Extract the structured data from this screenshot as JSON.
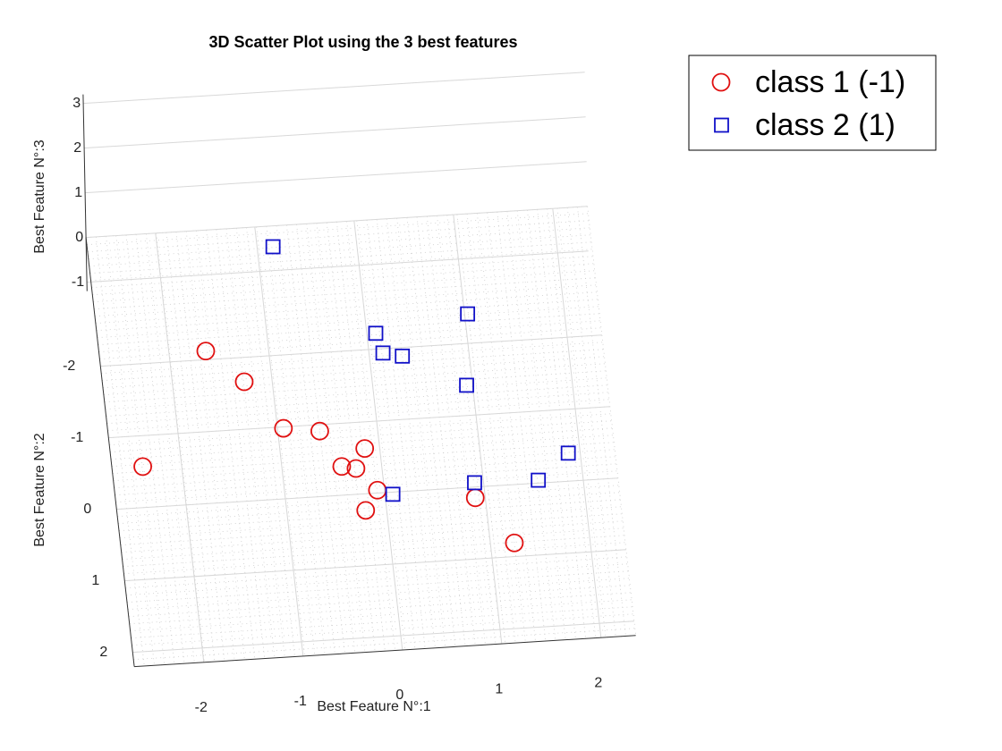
{
  "chart_data": {
    "type": "scatter",
    "title": "3D Scatter Plot using the 3 best features",
    "xlabel": "Best Feature N°:1",
    "ylabel": "Best Feature N°:2",
    "zlabel": "Best Feature N°:3",
    "xlim": [
      -2.7,
      2.35
    ],
    "xticks": [
      -2,
      -1,
      0,
      1,
      2
    ],
    "ylim": [
      -3.8,
      2.2
    ],
    "yticks": [
      -2,
      -1,
      0,
      1,
      2
    ],
    "zlim": [
      -1.2,
      3.2
    ],
    "zticks": [
      -1,
      0,
      1,
      2,
      3
    ],
    "grid": true,
    "legend": "outside-top-right",
    "series": [
      {
        "name": "class 1 (-1)",
        "color": "#e01010",
        "marker": "circle",
        "x": [
          -1.63,
          -1.28,
          -0.94,
          -0.58,
          -0.15,
          -2.39,
          -0.4,
          -0.26,
          -0.07,
          -0.21,
          0.9,
          1.24
        ],
        "values": [
          -2.12,
          -1.66,
          -0.98,
          -0.91,
          -0.63,
          -0.57,
          -0.4,
          -0.36,
          -0.04,
          0.23,
          0.15,
          0.81
        ]
      },
      {
        "name": "class 2 (1)",
        "color": "#1010c8",
        "marker": "square",
        "x": [
          -0.84,
          1.03,
          0.09,
          0.14,
          0.33,
          0.94,
          1.88,
          1.55,
          0.91,
          0.08
        ],
        "values": [
          -3.51,
          -2.41,
          -2.22,
          -1.94,
          -1.88,
          -1.42,
          -0.39,
          -0.04,
          -0.06,
          0.03
        ]
      }
    ]
  }
}
